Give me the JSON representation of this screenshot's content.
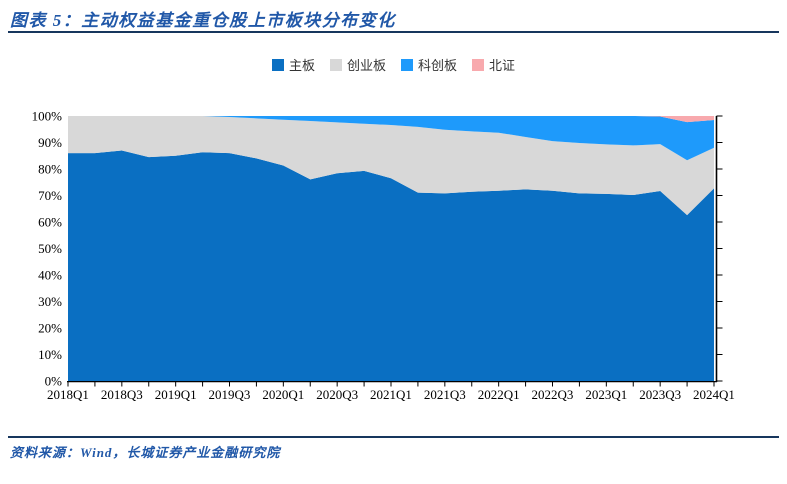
{
  "header": {
    "title": "图表 5：主动权益基金重仓股上市板块分布变化"
  },
  "footer": {
    "source": "资料来源：Wind，长城证券产业金融研究院"
  },
  "colors": {
    "title_blue": "#2158A8",
    "rule_navy": "#17365D",
    "axis_black": "#000000"
  },
  "chart_data": {
    "type": "area",
    "stacked": true,
    "percent": true,
    "title": "主动权益基金重仓股上市板块分布变化",
    "xlabel": "",
    "ylabel": "",
    "ylim": [
      0,
      100
    ],
    "grid": false,
    "legend_position": "top-center",
    "y_tick_labels": [
      "0%",
      "10%",
      "20%",
      "30%",
      "40%",
      "50%",
      "60%",
      "70%",
      "80%",
      "90%",
      "100%"
    ],
    "x_tick_labels": [
      "2018Q1",
      "2018Q3",
      "2019Q1",
      "2019Q3",
      "2020Q1",
      "2020Q3",
      "2021Q1",
      "2021Q3",
      "2022Q1",
      "2022Q3",
      "2023Q1",
      "2023Q3",
      "2024Q1"
    ],
    "categories": [
      "2018Q1",
      "2018Q2",
      "2018Q3",
      "2018Q4",
      "2019Q1",
      "2019Q2",
      "2019Q3",
      "2019Q4",
      "2020Q1",
      "2020Q2",
      "2020Q3",
      "2020Q4",
      "2021Q1",
      "2021Q2",
      "2021Q3",
      "2021Q4",
      "2022Q1",
      "2022Q2",
      "2022Q3",
      "2022Q4",
      "2023Q1",
      "2023Q2",
      "2023Q3",
      "2023Q4",
      "2024Q1"
    ],
    "series": [
      {
        "name": "主板",
        "color": "#0A6FC2",
        "values": [
          86,
          86,
          87,
          84.5,
          85,
          86.3,
          86,
          84,
          81.3,
          76.1,
          78.4,
          79.3,
          76.5,
          71.1,
          70.8,
          71.4,
          71.8,
          72.3,
          71.8,
          70.8,
          70.6,
          70.2,
          71.7,
          62.6,
          72.7
        ]
      },
      {
        "name": "创业板",
        "color": "#D8D8D8",
        "values": [
          14,
          14,
          13,
          15.5,
          15,
          13.7,
          13.6,
          15.1,
          17.3,
          22,
          19.2,
          17.8,
          20.1,
          24.8,
          24,
          22.8,
          21.9,
          19.8,
          18.7,
          19,
          18.7,
          18.7,
          17.7,
          20.7,
          15.3
        ]
      },
      {
        "name": "科创板",
        "color": "#1E9AFB",
        "values": [
          0,
          0,
          0,
          0,
          0,
          0,
          0.4,
          0.9,
          1.4,
          1.9,
          2.4,
          2.9,
          3.4,
          4.1,
          5.2,
          5.8,
          6.3,
          7.9,
          9.5,
          10.2,
          10.7,
          11.1,
          10.4,
          14.4,
          10.5
        ]
      },
      {
        "name": "北证",
        "color": "#F8A9AD",
        "values": [
          0,
          0,
          0,
          0,
          0,
          0,
          0,
          0,
          0,
          0,
          0,
          0,
          0,
          0,
          0,
          0,
          0,
          0,
          0,
          0,
          0,
          0,
          0.2,
          2.3,
          1.5
        ]
      }
    ]
  }
}
